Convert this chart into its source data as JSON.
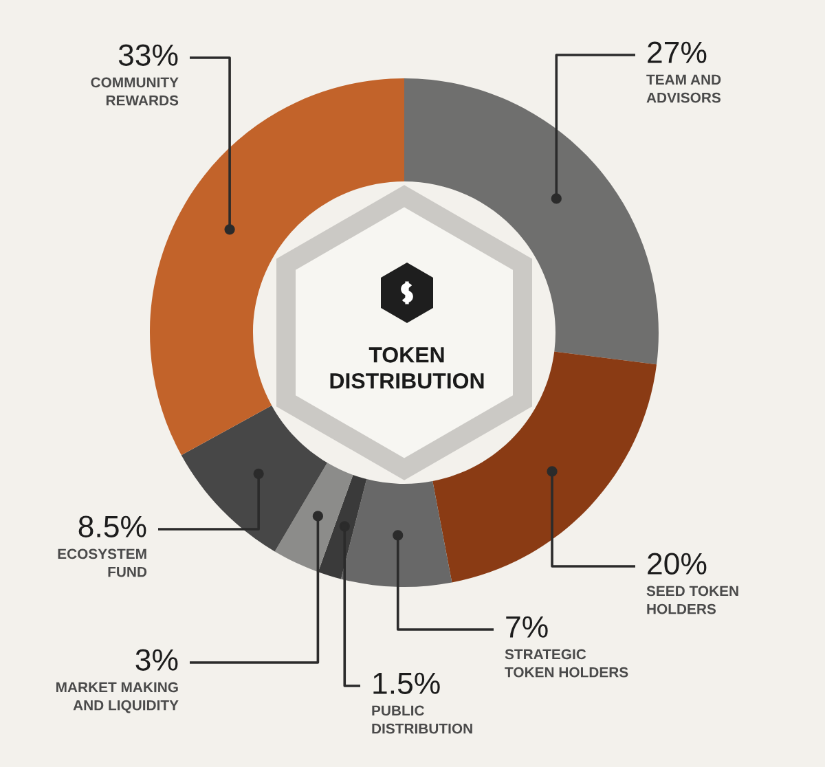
{
  "chart_data": {
    "type": "donut",
    "title": "TOKEN\nDISTRIBUTION",
    "categories": [
      "TEAM AND\nADVISORS",
      "SEED TOKEN\nHOLDERS",
      "STRATEGIC\nTOKEN HOLDERS",
      "PUBLIC\nDISTRIBUTION",
      "MARKET MAKING\nAND LIQUIDITY",
      "ECOSYSTEM\nFUND",
      "COMMUNITY\nREWARDS"
    ],
    "values": [
      27,
      20,
      7,
      1.5,
      3,
      8.5,
      33
    ],
    "value_labels": [
      "27%",
      "20%",
      "7%",
      "1.5%",
      "3%",
      "8.5%",
      "33%"
    ],
    "colors": [
      "#6f6f6e",
      "#8a3b14",
      "#686868",
      "#3a3a3a",
      "#8c8c8a",
      "#474747",
      "#c2632a"
    ]
  }
}
